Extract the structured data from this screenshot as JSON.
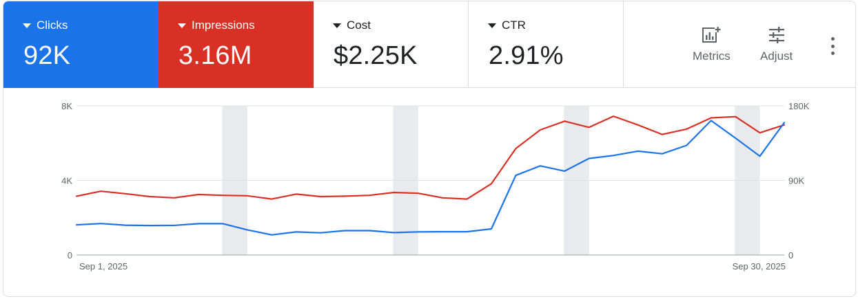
{
  "metrics": [
    {
      "label": "Clicks",
      "value": "92K",
      "color": "#1a73e8"
    },
    {
      "label": "Impressions",
      "value": "3.16M",
      "color": "#d93025"
    },
    {
      "label": "Cost",
      "value": "$2.25K"
    },
    {
      "label": "CTR",
      "value": "2.91%"
    }
  ],
  "actions": {
    "metrics_label": "Metrics",
    "adjust_label": "Adjust",
    "metrics_icon": "chart-add-icon",
    "adjust_icon": "tune-sliders-icon",
    "more_icon": "more-vertical-icon"
  },
  "chart_data": {
    "type": "line",
    "x": [
      "Sep 1, 2025",
      "Sep 2, 2025",
      "Sep 3, 2025",
      "Sep 4, 2025",
      "Sep 5, 2025",
      "Sep 6, 2025",
      "Sep 7, 2025",
      "Sep 8, 2025",
      "Sep 9, 2025",
      "Sep 10, 2025",
      "Sep 11, 2025",
      "Sep 12, 2025",
      "Sep 13, 2025",
      "Sep 14, 2025",
      "Sep 15, 2025",
      "Sep 16, 2025",
      "Sep 17, 2025",
      "Sep 18, 2025",
      "Sep 19, 2025",
      "Sep 20, 2025",
      "Sep 21, 2025",
      "Sep 22, 2025",
      "Sep 23, 2025",
      "Sep 24, 2025",
      "Sep 25, 2025",
      "Sep 26, 2025",
      "Sep 27, 2025",
      "Sep 28, 2025",
      "Sep 29, 2025",
      "Sep 30, 2025"
    ],
    "x_tick_labels": [
      "Sep 1, 2025",
      "Sep 30, 2025"
    ],
    "series": [
      {
        "name": "Clicks",
        "axis": "left",
        "color": "#1a73e8",
        "values": [
          1620,
          1690,
          1600,
          1580,
          1590,
          1680,
          1680,
          1350,
          1080,
          1240,
          1190,
          1310,
          1310,
          1200,
          1240,
          1250,
          1250,
          1400,
          4270,
          4780,
          4500,
          5180,
          5340,
          5570,
          5430,
          5880,
          7210,
          6270,
          5300,
          7100
        ]
      },
      {
        "name": "Impressions",
        "axis": "right",
        "color": "#d93025",
        "values": [
          71000,
          77000,
          74000,
          70500,
          69000,
          73000,
          72000,
          71500,
          67500,
          73500,
          70500,
          71000,
          72000,
          75500,
          74500,
          69000,
          67500,
          86000,
          128500,
          151000,
          161500,
          154000,
          167500,
          157000,
          145500,
          152000,
          165500,
          167000,
          147500,
          157000
        ]
      }
    ],
    "y_left": {
      "ticks": [
        "0",
        "4K",
        "8K"
      ],
      "range": [
        0,
        8000
      ]
    },
    "y_right": {
      "ticks": [
        "0",
        "90K",
        "180K"
      ],
      "range": [
        0,
        180000
      ]
    },
    "shaded_bands": [
      6,
      13,
      20,
      27
    ],
    "grid": true
  }
}
